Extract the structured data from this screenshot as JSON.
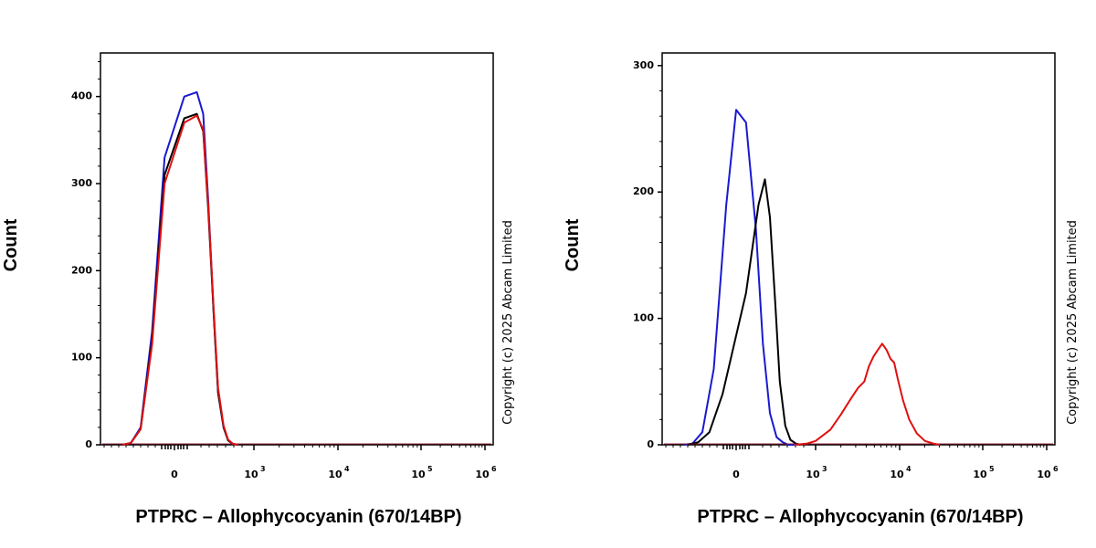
{
  "chart_data": [
    {
      "type": "line",
      "title": "",
      "xlabel": "PTPRC – Allophycocyanin (670/14BP)",
      "ylabel": "Count",
      "ylim": [
        0,
        450
      ],
      "y_ticks": [
        0,
        100,
        200,
        300,
        400
      ],
      "x_scale": "biexponential",
      "x_ticks": [
        {
          "base": "0",
          "exp": ""
        },
        {
          "base": "10",
          "exp": "3"
        },
        {
          "base": "10",
          "exp": "4"
        },
        {
          "base": "10",
          "exp": "5"
        },
        {
          "base": "10",
          "exp": "6"
        }
      ],
      "copyright": "Copyright (c) 2025 Abcam Limited",
      "series": [
        {
          "name": "blue",
          "color": "#1a1ad0",
          "x": [
            -300,
            -200,
            -120,
            -60,
            -20,
            20,
            60,
            90,
            120,
            160,
            200,
            260,
            320,
            400,
            500
          ],
          "y": [
            0,
            2,
            20,
            130,
            330,
            400,
            405,
            380,
            280,
            150,
            60,
            20,
            5,
            1,
            0
          ]
        },
        {
          "name": "black",
          "color": "#000000",
          "x": [
            -300,
            -200,
            -120,
            -60,
            -20,
            20,
            60,
            90,
            120,
            160,
            200,
            260,
            320,
            400,
            500
          ],
          "y": [
            0,
            2,
            18,
            120,
            310,
            375,
            380,
            360,
            270,
            150,
            60,
            20,
            5,
            1,
            0
          ]
        },
        {
          "name": "red",
          "color": "#e01010",
          "x": [
            -300,
            -200,
            -120,
            -60,
            -20,
            20,
            60,
            90,
            120,
            160,
            200,
            260,
            320,
            400,
            500
          ],
          "y": [
            0,
            2,
            18,
            115,
            300,
            370,
            378,
            362,
            275,
            155,
            65,
            22,
            6,
            1,
            0
          ]
        }
      ]
    },
    {
      "type": "line",
      "title": "",
      "xlabel": "PTPRC – Allophycocyanin (670/14BP)",
      "ylabel": "Count",
      "ylim": [
        0,
        310
      ],
      "y_ticks": [
        0,
        100,
        200,
        300
      ],
      "x_scale": "biexponential",
      "x_ticks": [
        {
          "base": "0",
          "exp": ""
        },
        {
          "base": "10",
          "exp": "3"
        },
        {
          "base": "10",
          "exp": "4"
        },
        {
          "base": "10",
          "exp": "5"
        },
        {
          "base": "10",
          "exp": "6"
        }
      ],
      "copyright": "Copyright (c) 2025 Abcam Limited",
      "series": [
        {
          "name": "blue",
          "color": "#1a1ad0",
          "x": [
            -300,
            -200,
            -120,
            -60,
            -20,
            0,
            20,
            50,
            80,
            120,
            170,
            230,
            300,
            400
          ],
          "y": [
            0,
            1,
            10,
            60,
            190,
            265,
            255,
            170,
            80,
            25,
            6,
            2,
            0,
            0
          ]
        },
        {
          "name": "black",
          "color": "#000000",
          "x": [
            -250,
            -150,
            -80,
            -30,
            20,
            60,
            90,
            120,
            160,
            200,
            260,
            330,
            420,
            520
          ],
          "y": [
            0,
            2,
            10,
            40,
            120,
            190,
            210,
            180,
            110,
            50,
            15,
            4,
            1,
            0
          ]
        },
        {
          "name": "red",
          "color": "#e01010",
          "x": [
            400,
            700,
            1000,
            1500,
            2000,
            2600,
            3200,
            3800,
            4300,
            4900,
            5500,
            6200,
            7000,
            7800,
            8600,
            9500,
            11000,
            13000,
            16000,
            20000,
            25000,
            30000
          ],
          "y": [
            0,
            1,
            3,
            12,
            24,
            36,
            45,
            50,
            62,
            70,
            75,
            80,
            75,
            68,
            65,
            52,
            35,
            20,
            9,
            3,
            1,
            0
          ]
        }
      ]
    }
  ]
}
